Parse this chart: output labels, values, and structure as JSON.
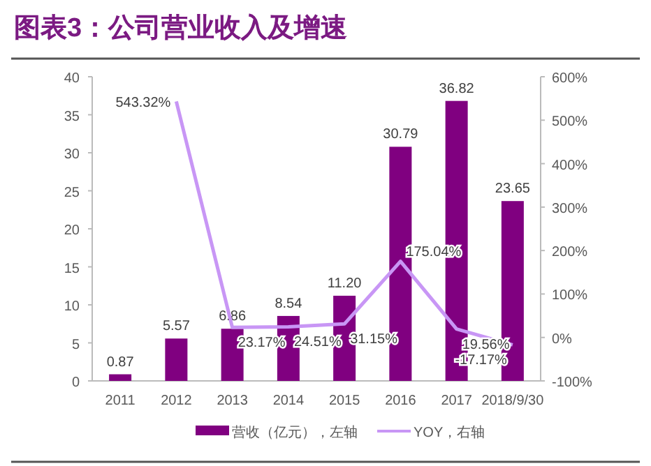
{
  "chart_data": {
    "type": "bar",
    "title": "图表3：公司营业收入及增速",
    "categories": [
      "2011",
      "2012",
      "2013",
      "2014",
      "2015",
      "2016",
      "2017",
      "2018/9/30"
    ],
    "series": [
      {
        "name": "营收（亿元），左轴",
        "color": "#800080",
        "values": [
          0.87,
          5.57,
          6.86,
          8.54,
          11.2,
          30.79,
          36.82,
          23.65
        ],
        "value_labels": [
          "0.87",
          "5.57",
          "6.86",
          "8.54",
          "11.20",
          "30.79",
          "36.82",
          "23.65"
        ]
      },
      {
        "name": "YOY，右轴",
        "type": "line",
        "axis": "y2",
        "color": "#c896f5",
        "values": [
          null,
          543.32,
          23.17,
          24.51,
          31.15,
          175.04,
          19.56,
          -17.17
        ],
        "value_labels": [
          null,
          "543.32%",
          "23.17%",
          "24.51%",
          "31.15%",
          "175.04%",
          "19.56%",
          "-17.17%"
        ]
      }
    ],
    "ylim": [
      0,
      40
    ],
    "yticks": [
      0,
      5,
      10,
      15,
      20,
      25,
      30,
      35,
      40
    ],
    "y2lim": [
      -100,
      600
    ],
    "y2ticks": [
      {
        "value": -100,
        "label": "-100%"
      },
      {
        "value": 0,
        "label": "0%"
      },
      {
        "value": 100,
        "label": "100%"
      },
      {
        "value": 200,
        "label": "200%"
      },
      {
        "value": 300,
        "label": "300%"
      },
      {
        "value": 400,
        "label": "400%"
      },
      {
        "value": 500,
        "label": "500%"
      },
      {
        "value": 600,
        "label": "600%"
      }
    ],
    "legend": "bottom",
    "grid": false,
    "marker": "none"
  }
}
